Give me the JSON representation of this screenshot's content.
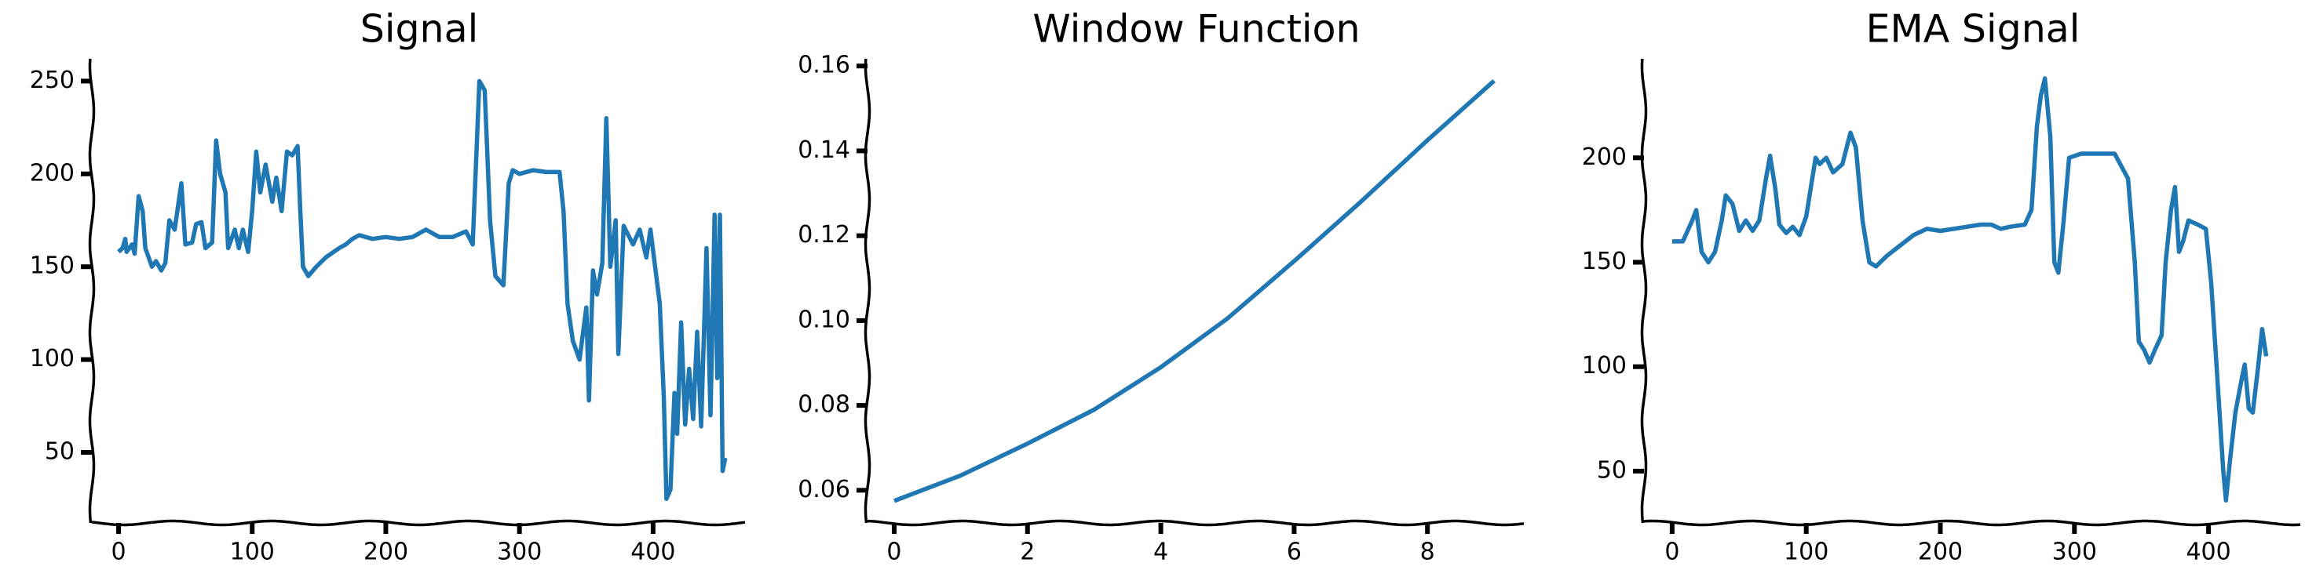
{
  "chart_data": [
    {
      "type": "line",
      "title": "Signal",
      "x": [
        0,
        3,
        5,
        6,
        10,
        12,
        15,
        18,
        20,
        25,
        28,
        32,
        35,
        38,
        42,
        47,
        50,
        55,
        58,
        62,
        65,
        70,
        73,
        76,
        80,
        82,
        87,
        90,
        93,
        97,
        100,
        103,
        106,
        110,
        115,
        118,
        122,
        126,
        130,
        134,
        136,
        138,
        142,
        148,
        155,
        165,
        170,
        175,
        180,
        190,
        200,
        210,
        220,
        230,
        240,
        250,
        260,
        265,
        270,
        274,
        278,
        282,
        288,
        292,
        295,
        300,
        310,
        320,
        330,
        333,
        336,
        340,
        345,
        350,
        352,
        355,
        358,
        362,
        365,
        368,
        372,
        374,
        378,
        385,
        390,
        395,
        398,
        405,
        408,
        410,
        413,
        416,
        418,
        421,
        424,
        427,
        430,
        433,
        436,
        440,
        443,
        446,
        448,
        450,
        452,
        454
      ],
      "series": [
        {
          "name": "Signal",
          "color": "#1f77b4",
          "values": [
            158,
            160,
            165,
            158,
            162,
            157,
            188,
            180,
            160,
            150,
            153,
            148,
            152,
            175,
            170,
            195,
            162,
            163,
            173,
            174,
            160,
            163,
            218,
            200,
            190,
            160,
            170,
            160,
            170,
            158,
            180,
            212,
            190,
            205,
            185,
            198,
            180,
            212,
            210,
            215,
            180,
            150,
            145,
            150,
            155,
            160,
            162,
            165,
            167,
            165,
            166,
            165,
            166,
            170,
            166,
            166,
            169,
            162,
            250,
            245,
            175,
            145,
            140,
            195,
            202,
            200,
            202,
            201,
            201,
            180,
            130,
            110,
            100,
            128,
            78,
            148,
            135,
            152,
            230,
            150,
            175,
            103,
            172,
            162,
            170,
            155,
            170,
            130,
            80,
            25,
            30,
            82,
            60,
            120,
            65,
            95,
            68,
            115,
            64,
            160,
            70,
            178,
            90,
            178,
            40,
            47
          ]
        }
      ],
      "xlim": [
        -20,
        470
      ],
      "ylim": [
        12,
        262
      ],
      "xticks": [
        0,
        100,
        200,
        300,
        400
      ],
      "yticks": [
        50,
        100,
        150,
        200,
        250
      ]
    },
    {
      "type": "line",
      "title": "Window Function",
      "x": [
        0,
        1,
        2,
        3,
        4,
        5,
        6,
        7,
        8,
        9
      ],
      "series": [
        {
          "name": "Window Function",
          "color": "#1f77b4",
          "values": [
            0.0575,
            0.0635,
            0.071,
            0.079,
            0.089,
            0.1005,
            0.114,
            0.128,
            0.1425,
            0.1565
          ]
        }
      ],
      "xlim": [
        -0.4,
        9.47
      ],
      "ylim": [
        0.0523,
        0.1617
      ],
      "xticks": [
        0,
        2,
        4,
        6,
        8
      ],
      "yticks": [
        0.06,
        0.08,
        {
          "value": 0.1,
          "label": "0.10"
        },
        0.12,
        0.14,
        0.16
      ]
    },
    {
      "type": "line",
      "title": "EMA Signal",
      "x": [
        0,
        8,
        15,
        18,
        22,
        27,
        32,
        37,
        40,
        45,
        50,
        55,
        60,
        65,
        70,
        73,
        77,
        80,
        85,
        90,
        95,
        100,
        107,
        110,
        115,
        120,
        127,
        133,
        137,
        142,
        147,
        152,
        160,
        170,
        180,
        190,
        200,
        210,
        220,
        230,
        238,
        245,
        252,
        263,
        268,
        272,
        275,
        278,
        282,
        285,
        288,
        292,
        296,
        305,
        315,
        330,
        340,
        345,
        348,
        352,
        356,
        360,
        365,
        368,
        372,
        375,
        378,
        381,
        385,
        392,
        398,
        402,
        405,
        408,
        411,
        413,
        416,
        420,
        425,
        427,
        430,
        433,
        437,
        440,
        443
      ],
      "series": [
        {
          "name": "EMA Signal",
          "color": "#1f77b4",
          "values": [
            160,
            160,
            170,
            175,
            155,
            150,
            155,
            170,
            182,
            178,
            165,
            170,
            165,
            170,
            190,
            201,
            185,
            168,
            164,
            167,
            163,
            172,
            200,
            197,
            200,
            193,
            197,
            212,
            205,
            170,
            150,
            148,
            153,
            158,
            163,
            166,
            165,
            166,
            167,
            168,
            168,
            166,
            167,
            168,
            175,
            215,
            230,
            238,
            210,
            150,
            145,
            170,
            200,
            202,
            202,
            202,
            190,
            150,
            112,
            108,
            102,
            108,
            115,
            150,
            175,
            186,
            155,
            160,
            170,
            168,
            166,
            140,
            110,
            80,
            50,
            36,
            55,
            78,
            95,
            101,
            80,
            78,
            100,
            118,
            105
          ]
        }
      ],
      "xlim": [
        -21,
        469.6
      ],
      "ylim": [
        25.2,
        247.4
      ],
      "xticks": [
        0,
        100,
        200,
        300,
        400
      ],
      "yticks": [
        50,
        100,
        150,
        200
      ]
    }
  ]
}
